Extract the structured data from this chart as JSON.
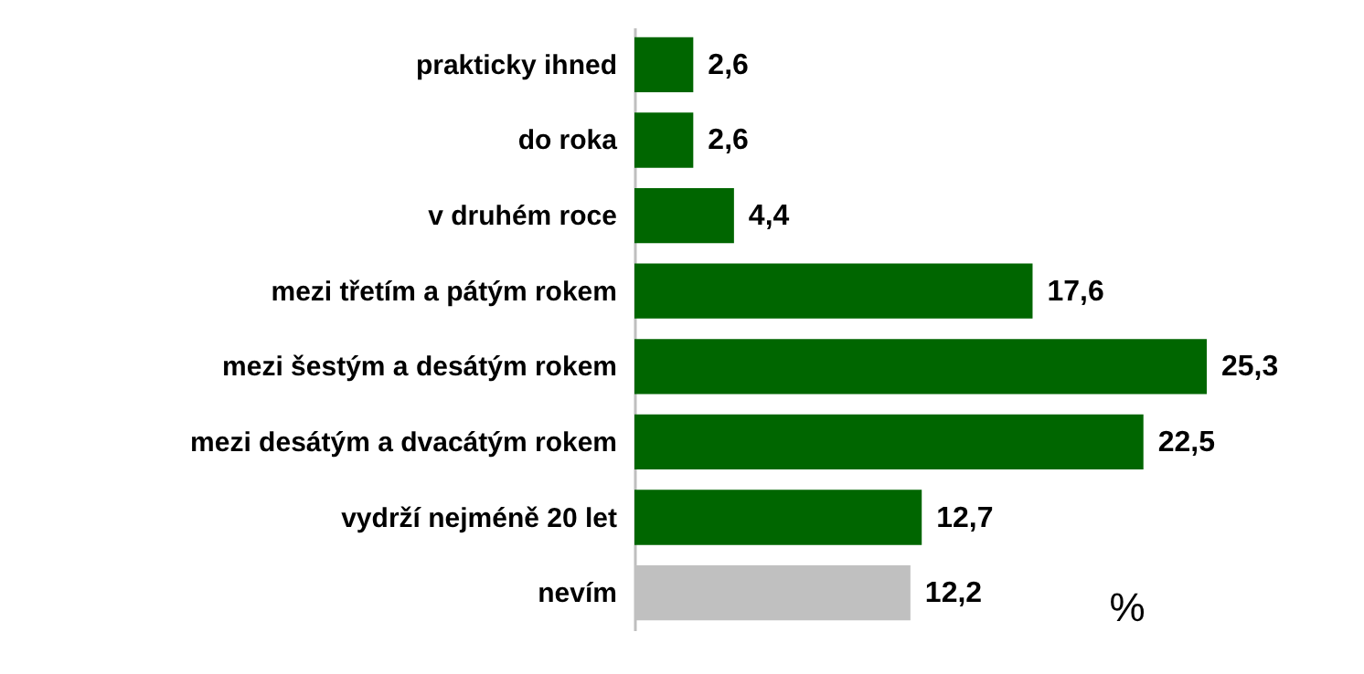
{
  "chart_data": {
    "type": "bar",
    "orientation": "horizontal",
    "categories": [
      "prakticky ihned",
      "do roka",
      "v druhém roce",
      "mezi třetím a pátým rokem",
      "mezi šestým a desátým rokem",
      "mezi desátým a dvacátým rokem",
      "vydrží nejméně 20 let",
      "nevím"
    ],
    "values": [
      2.6,
      2.6,
      4.4,
      17.6,
      25.3,
      22.5,
      12.7,
      12.2
    ],
    "colors": [
      "#006600",
      "#006600",
      "#006600",
      "#006600",
      "#006600",
      "#006600",
      "#006600",
      "#c0c0c0"
    ],
    "value_labels": [
      "2,6",
      "2,6",
      "4,4",
      "17,6",
      "25,3",
      "22,5",
      "12,7",
      "12,2"
    ],
    "annotations": [
      "%"
    ]
  }
}
